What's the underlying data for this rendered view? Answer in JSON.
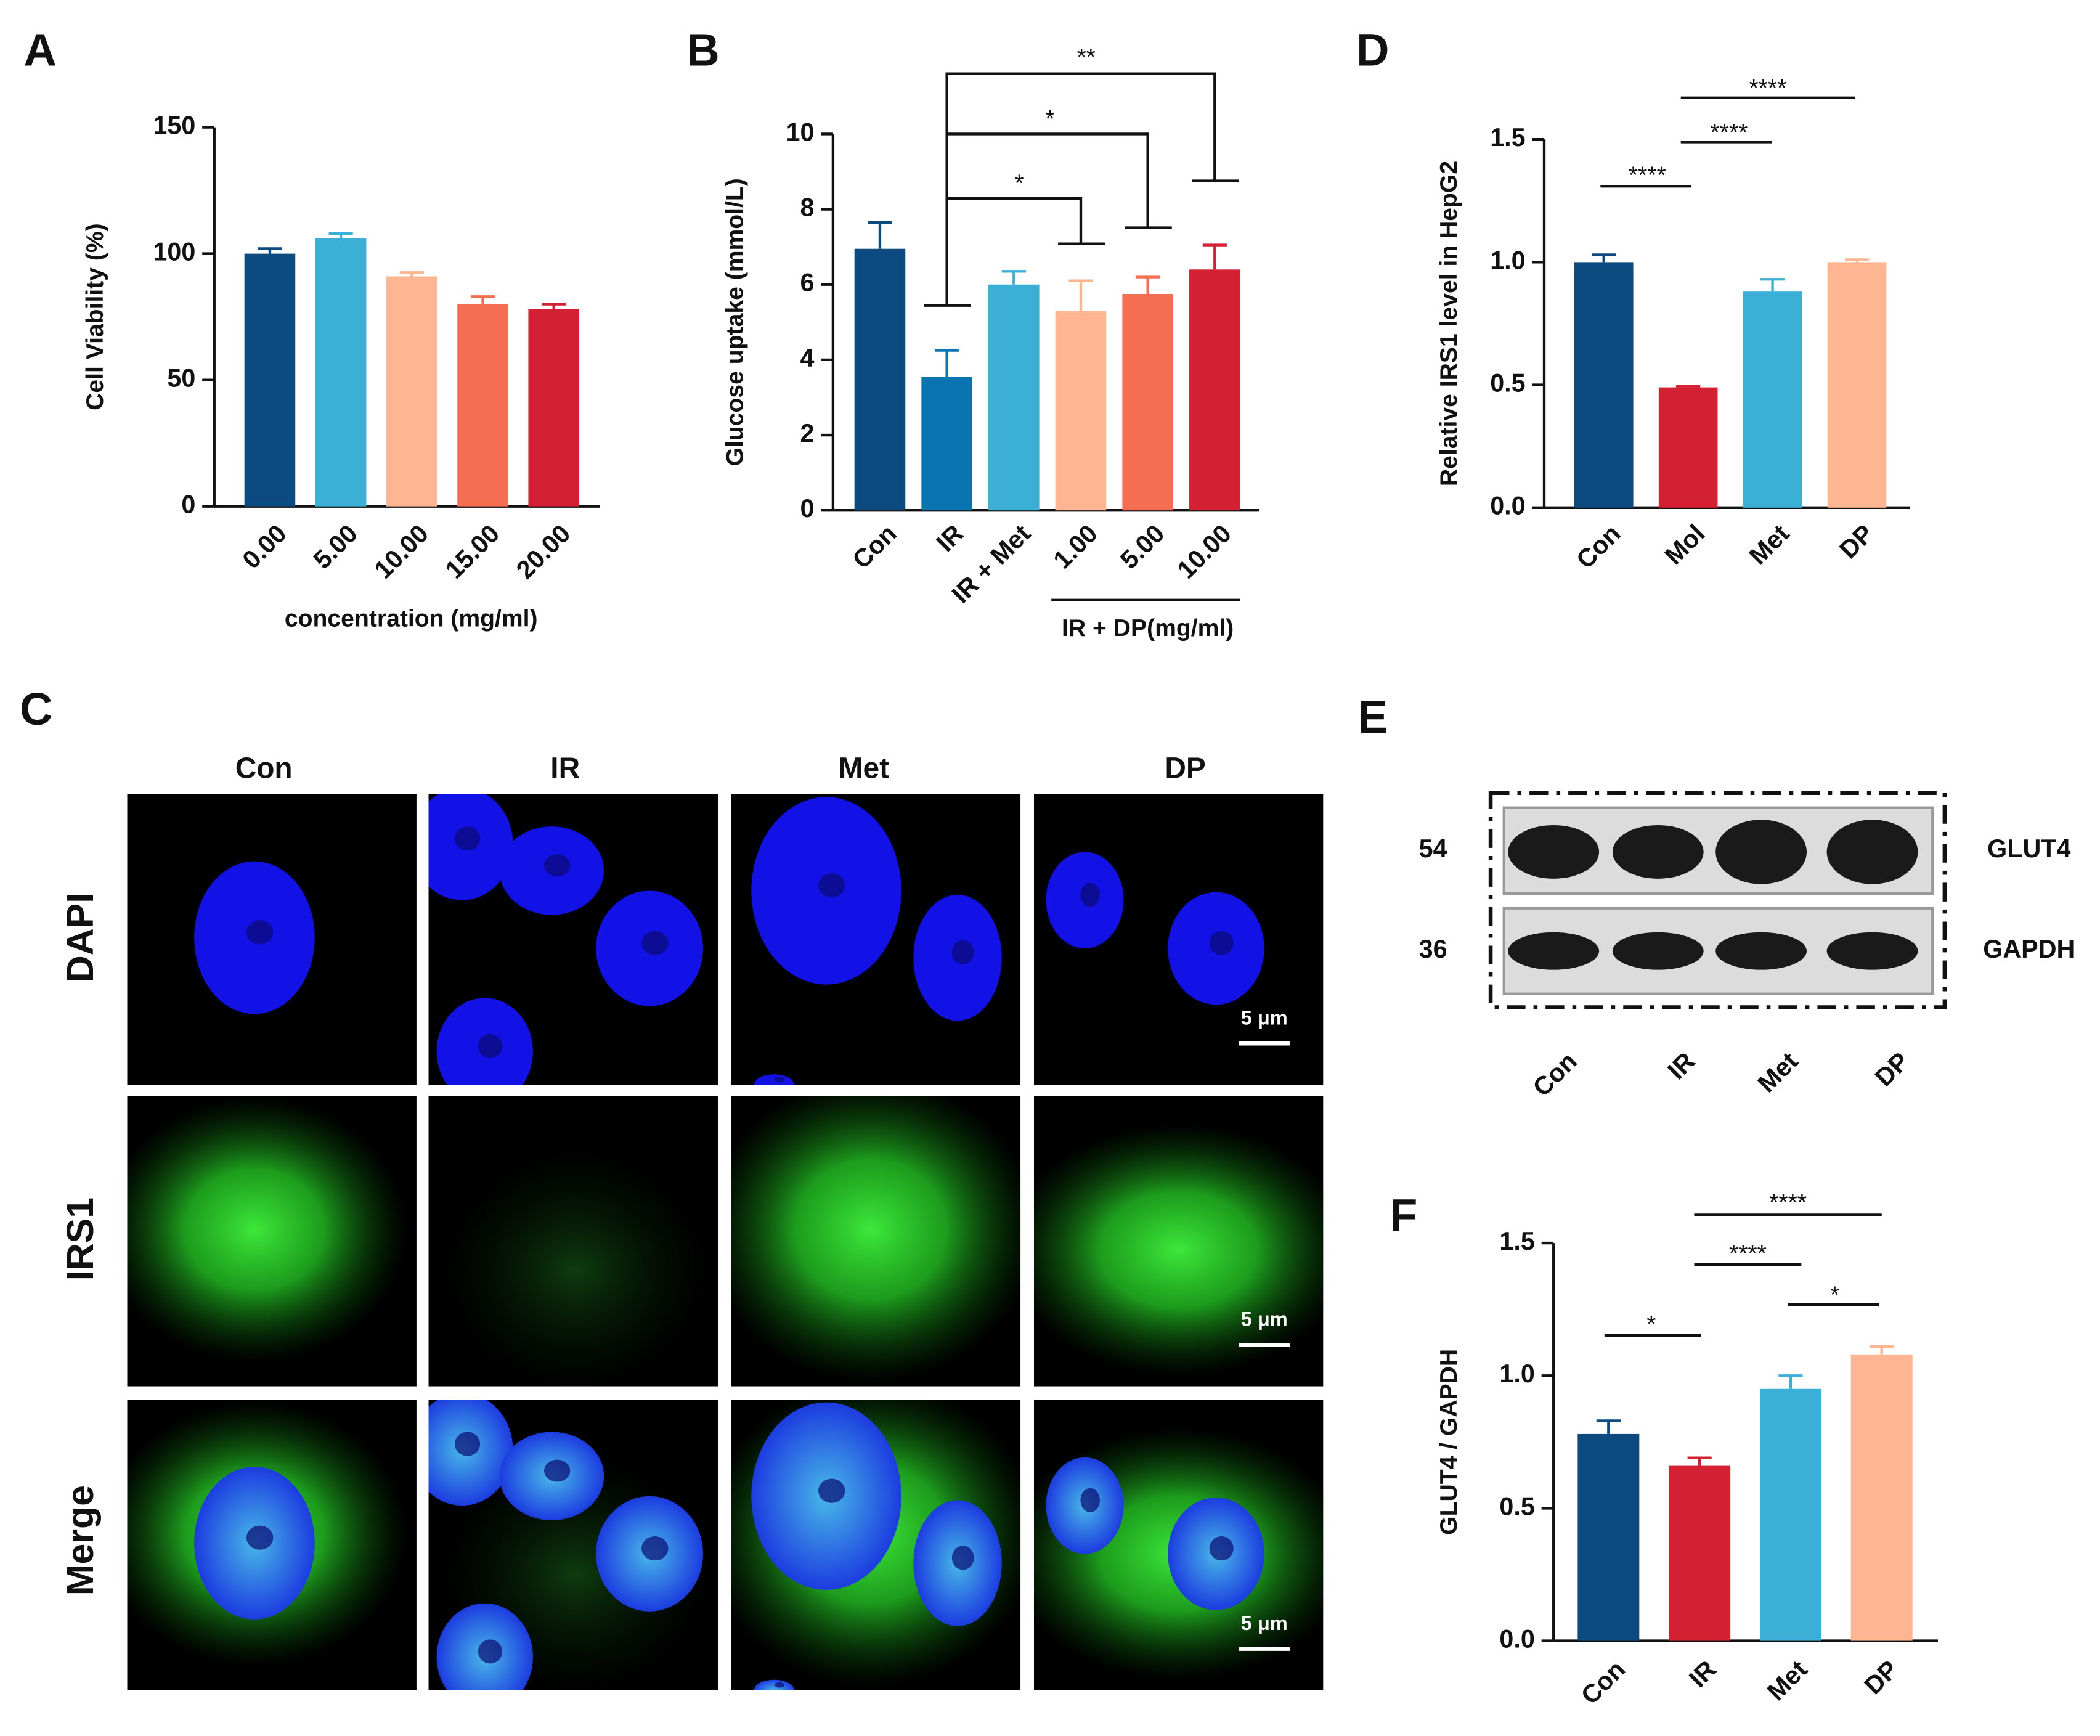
{
  "chart_data": [
    {
      "panel": "A",
      "type": "bar",
      "ylabel": "Cell Viability (%)",
      "xlabel": "concentration (mg/ml)",
      "categories": [
        "0.00",
        "5.00",
        "10.00",
        "15.00",
        "20.00"
      ],
      "values": [
        100,
        106,
        91,
        80,
        78
      ],
      "errors": [
        2,
        2,
        1.5,
        3,
        2
      ],
      "colors": [
        "#0d4a80",
        "#3bafd6",
        "#fdb592",
        "#f56e54",
        "#d42033"
      ],
      "ylim": [
        0,
        150
      ],
      "yticks": [
        0,
        50,
        100,
        150
      ]
    },
    {
      "panel": "B",
      "type": "bar",
      "ylabel": "Glucose uptake (mmol/L)",
      "group_label": "IR + DP(mg/ml)",
      "categories": [
        "Con",
        "IR",
        "IR + Met",
        "1.00",
        "5.00",
        "10.00"
      ],
      "values": [
        6.95,
        3.55,
        6.0,
        5.3,
        5.75,
        6.4
      ],
      "errors": [
        0.7,
        0.7,
        0.35,
        0.8,
        0.45,
        0.65
      ],
      "colors": [
        "#0d4a80",
        "#0a74b0",
        "#3bafd6",
        "#fdb592",
        "#f56e54",
        "#d42033"
      ],
      "ylim": [
        0,
        10
      ],
      "yticks": [
        0,
        2,
        4,
        6,
        8,
        10
      ],
      "annotations": [
        "**",
        "*",
        "*"
      ]
    },
    {
      "panel": "D",
      "type": "bar",
      "ylabel": "Relative IRS1 level in HepG2",
      "categories": [
        "Con",
        "Mol",
        "Met",
        "DP"
      ],
      "values": [
        1.0,
        0.49,
        0.88,
        1.0
      ],
      "errors": [
        0.03,
        0.005,
        0.05,
        0.01
      ],
      "colors": [
        "#0d4a80",
        "#d42033",
        "#3bafd6",
        "#fdb592"
      ],
      "ylim": [
        0,
        1.5
      ],
      "yticks": [
        {
          "value": 0,
          "label": "0.0"
        },
        0.5,
        {
          "value": 1,
          "label": "1.0"
        },
        1.5
      ],
      "annotations": [
        "****",
        "****",
        "****"
      ]
    },
    {
      "panel": "F",
      "type": "bar",
      "ylabel": "GLUT4 / GAPDH",
      "categories": [
        "Con",
        "IR",
        "Met",
        "DP"
      ],
      "values": [
        0.78,
        0.66,
        0.95,
        1.08
      ],
      "errors": [
        0.05,
        0.03,
        0.05,
        0.03
      ],
      "colors": [
        "#0d4a80",
        "#d42033",
        "#3bafd6",
        "#fdb592"
      ],
      "ylim": [
        0,
        1.5
      ],
      "yticks": [
        {
          "value": 0,
          "label": "0.0"
        },
        0.5,
        {
          "value": 1,
          "label": "1.0"
        },
        1.5
      ],
      "annotations": [
        "****",
        "****",
        "*",
        "*"
      ]
    }
  ],
  "micrographs": {
    "panel": "C",
    "columns": [
      "Con",
      "IR",
      "Met",
      "DP"
    ],
    "rows": [
      "DAPI",
      "IRS1",
      "Merge"
    ],
    "scale_bar": "5 μm"
  },
  "western_blot": {
    "panel": "E",
    "bands": [
      {
        "label": "GLUT4",
        "size": 54
      },
      {
        "label": "GAPDH",
        "size": 36
      }
    ],
    "lanes": [
      "Con",
      "IR",
      "Met",
      "DP"
    ]
  }
}
